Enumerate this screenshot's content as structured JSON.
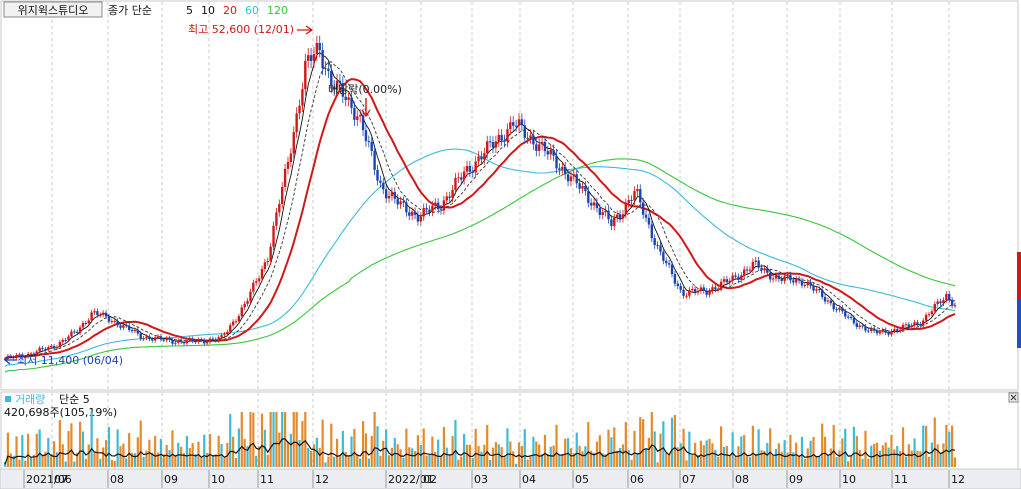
{
  "chart_data": {
    "type": "line",
    "price_panel": {
      "stock_name": "위지윅스튜디오",
      "indicator_label": "종가 단순",
      "ma_periods": [
        "5",
        "10",
        "20",
        "60",
        "120"
      ],
      "ma_colors": {
        "5": "#222222",
        "10": "#333333",
        "20": "#d01818",
        "60": "#3bbbd8",
        "120": "#39c63b"
      },
      "high_marker": "최고 52,600 (12/01)",
      "low_marker": "최저 11,400 (06/04)",
      "dividend_marker": "배당락(0.00%)",
      "close_series": [
        {
          "x": "2021/06/01",
          "y": 11800
        },
        {
          "x": "2021/06/15",
          "y": 12400
        },
        {
          "x": "2021/06/29",
          "y": 13300
        },
        {
          "x": "2021/07/13",
          "y": 15200
        },
        {
          "x": "2021/07/22",
          "y": 17600
        },
        {
          "x": "2021/08/05",
          "y": 16300
        },
        {
          "x": "2021/08/19",
          "y": 14600
        },
        {
          "x": "2021/09/02",
          "y": 14100
        },
        {
          "x": "2021/09/16",
          "y": 13900
        },
        {
          "x": "2021/10/05",
          "y": 14300
        },
        {
          "x": "2021/10/19",
          "y": 18600
        },
        {
          "x": "2021/11/01",
          "y": 24500
        },
        {
          "x": "2021/11/12",
          "y": 35500
        },
        {
          "x": "2021/11/23",
          "y": 48000
        },
        {
          "x": "2021/12/01",
          "y": 50500
        },
        {
          "x": "2021/12/08",
          "y": 46000
        },
        {
          "x": "2021/12/15",
          "y": 44500
        },
        {
          "x": "2021/12/24",
          "y": 42000
        },
        {
          "x": "2022/01/05",
          "y": 33500
        },
        {
          "x": "2022/01/18",
          "y": 30600
        },
        {
          "x": "2022/01/28",
          "y": 29500
        },
        {
          "x": "2022/02/10",
          "y": 31000
        },
        {
          "x": "2022/02/24",
          "y": 35000
        },
        {
          "x": "2022/03/10",
          "y": 38000
        },
        {
          "x": "2022/03/24",
          "y": 41000
        },
        {
          "x": "2022/04/07",
          "y": 38500
        },
        {
          "x": "2022/04/21",
          "y": 35500
        },
        {
          "x": "2022/05/06",
          "y": 32000
        },
        {
          "x": "2022/05/20",
          "y": 28500
        },
        {
          "x": "2022/06/03",
          "y": 32500
        },
        {
          "x": "2022/06/17",
          "y": 25000
        },
        {
          "x": "2022/06/30",
          "y": 20000
        },
        {
          "x": "2022/07/14",
          "y": 20200
        },
        {
          "x": "2022/07/28",
          "y": 21500
        },
        {
          "x": "2022/08/11",
          "y": 23500
        },
        {
          "x": "2022/08/25",
          "y": 21700
        },
        {
          "x": "2022/09/08",
          "y": 21500
        },
        {
          "x": "2022/09/22",
          "y": 19200
        },
        {
          "x": "2022/10/06",
          "y": 16600
        },
        {
          "x": "2022/10/20",
          "y": 15000
        },
        {
          "x": "2022/11/03",
          "y": 15400
        },
        {
          "x": "2022/11/17",
          "y": 16500
        },
        {
          "x": "2022/12/01",
          "y": 19700
        },
        {
          "x": "2022/12/06",
          "y": 18500
        }
      ]
    },
    "volume_panel": {
      "label": "거래량",
      "ma_label": "단순 5",
      "last_value": "420,698주(105,19%)"
    },
    "x_axis_labels": [
      "2021/06",
      "07",
      "08",
      "09",
      "10",
      "11",
      "12",
      "2022/01",
      "02",
      "03",
      "04",
      "05",
      "06",
      "07",
      "08",
      "09",
      "10",
      "11",
      "12"
    ],
    "grid": true
  }
}
